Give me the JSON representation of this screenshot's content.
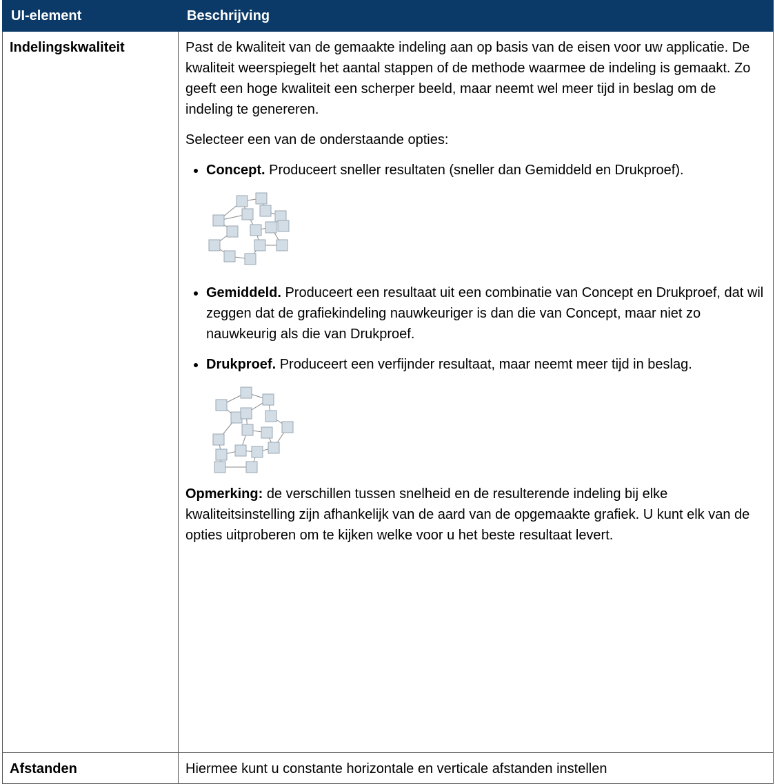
{
  "table": {
    "header": [
      "UI-element",
      "Beschrijving"
    ],
    "rows": [
      {
        "name": "Indelingskwaliteit",
        "intro": "Past de kwaliteit van de gemaakte indeling aan op basis van de eisen voor uw applicatie. De kwaliteit weerspiegelt het aantal stappen of de methode waarmee de indeling is gemaakt. Zo geeft een hoge kwaliteit een scherper beeld, maar neemt wel meer tijd in beslag om de indeling te genereren.",
        "select": "Selecteer een van de onderstaande opties:",
        "options": [
          {
            "label": "Concept.",
            "text": "Produceert sneller resultaten (sneller dan Gemiddeld en Drukproef)."
          },
          {
            "label": "Gemiddeld.",
            "text": "Produceert een resultaat uit een combinatie van Concept en Drukproef, dat wil zeggen dat de grafiekindeling nauwkeuriger is dan die van Concept, maar niet zo nauwkeurig als die van Drukproef."
          },
          {
            "label": "Drukproef.",
            "text": "Produceert een verfijnder resultaat, maar neemt meer tijd in beslag."
          }
        ],
        "note_label": "Opmerking:",
        "note_text": "de verschillen tussen snelheid en de resulterende indeling bij elke kwaliteitsinstelling zijn afhankelijk van de aard van de opgemaakte grafiek. U kunt elk van de opties uitproberen om te kijken welke voor u het beste resultaat levert."
      },
      {
        "name": "Afstanden",
        "text": "Hiermee kunt u constante horizontale en verticale afstanden instellen"
      }
    ]
  }
}
